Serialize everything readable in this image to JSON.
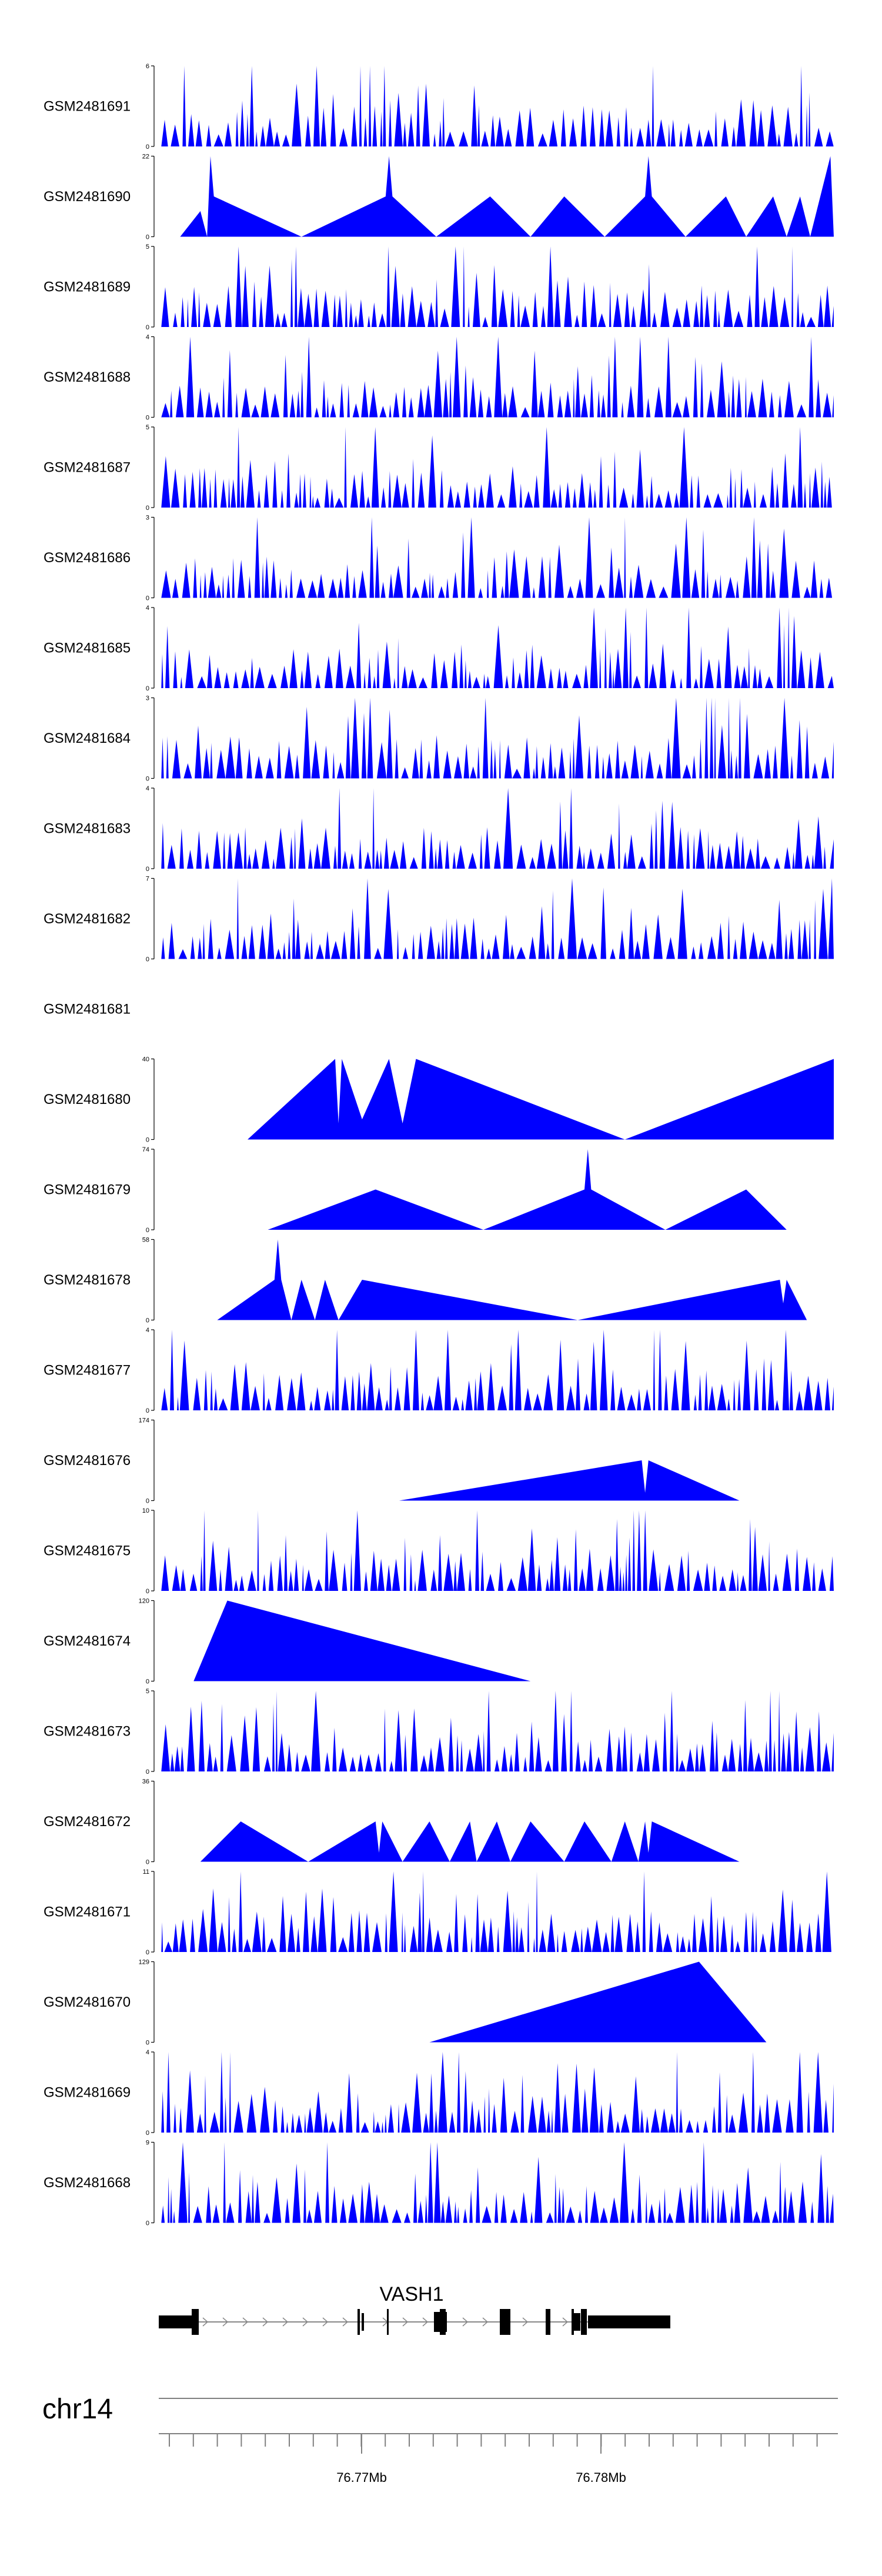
{
  "chart_data": {
    "type": "area",
    "region": "chr14",
    "gene": {
      "name": "VASH1"
    },
    "axis": {
      "ticks": [
        "76.77Mb",
        "76.78Mb"
      ]
    },
    "colors": {
      "signal": "#0000FF",
      "gene": "#000000",
      "axis": "#808080"
    },
    "tracks": [
      {
        "name": "GSM2481691",
        "ymax": "6",
        "empty": false,
        "peaks": []
      },
      {
        "name": "GSM2481690",
        "ymax": "22",
        "empty": false,
        "peaks": [
          [
            0.03,
            0
          ],
          [
            0.06,
            7
          ],
          [
            0.07,
            0
          ],
          [
            0.075,
            22
          ],
          [
            0.08,
            11
          ],
          [
            0.21,
            0
          ],
          [
            0.335,
            11
          ],
          [
            0.34,
            22
          ],
          [
            0.345,
            11
          ],
          [
            0.41,
            0
          ],
          [
            0.49,
            11
          ],
          [
            0.55,
            0
          ],
          [
            0.6,
            11
          ],
          [
            0.66,
            0
          ],
          [
            0.72,
            11
          ],
          [
            0.725,
            22
          ],
          [
            0.73,
            11
          ],
          [
            0.78,
            0
          ],
          [
            0.84,
            11
          ],
          [
            0.87,
            0
          ],
          [
            0.91,
            11
          ],
          [
            0.93,
            0
          ],
          [
            0.95,
            11
          ],
          [
            0.965,
            0
          ],
          [
            0.98,
            11
          ],
          [
            0.995,
            22
          ],
          [
            1.0,
            0
          ]
        ]
      },
      {
        "name": "GSM2481689",
        "ymax": "5",
        "empty": false,
        "peaks": []
      },
      {
        "name": "GSM2481688",
        "ymax": "4",
        "empty": false,
        "peaks": []
      },
      {
        "name": "GSM2481687",
        "ymax": "5",
        "empty": false,
        "peaks": []
      },
      {
        "name": "GSM2481686",
        "ymax": "3",
        "empty": false,
        "peaks": []
      },
      {
        "name": "GSM2481685",
        "ymax": "4",
        "empty": false,
        "peaks": []
      },
      {
        "name": "GSM2481684",
        "ymax": "3",
        "empty": false,
        "peaks": []
      },
      {
        "name": "GSM2481683",
        "ymax": "4",
        "empty": false,
        "peaks": []
      },
      {
        "name": "GSM2481682",
        "ymax": "7",
        "empty": false,
        "peaks": []
      },
      {
        "name": "GSM2481681",
        "ymax": "",
        "empty": true,
        "peaks": []
      },
      {
        "name": "GSM2481680",
        "ymax": "40",
        "empty": false,
        "peaks": [
          [
            0.13,
            0
          ],
          [
            0.26,
            40
          ],
          [
            0.265,
            8
          ],
          [
            0.27,
            40
          ],
          [
            0.3,
            10
          ],
          [
            0.34,
            40
          ],
          [
            0.36,
            8
          ],
          [
            0.38,
            40
          ],
          [
            0.69,
            0
          ],
          [
            1.0,
            40
          ]
        ]
      },
      {
        "name": "GSM2481679",
        "ymax": "74",
        "empty": false,
        "peaks": [
          [
            0.16,
            0
          ],
          [
            0.32,
            37
          ],
          [
            0.48,
            0
          ],
          [
            0.63,
            37
          ],
          [
            0.635,
            74
          ],
          [
            0.64,
            37
          ],
          [
            0.75,
            0
          ],
          [
            0.87,
            37
          ],
          [
            0.93,
            0
          ]
        ]
      },
      {
        "name": "GSM2481678",
        "ymax": "58",
        "empty": false,
        "peaks": [
          [
            0.085,
            0
          ],
          [
            0.17,
            29
          ],
          [
            0.175,
            58
          ],
          [
            0.18,
            29
          ],
          [
            0.195,
            0
          ],
          [
            0.21,
            29
          ],
          [
            0.23,
            0
          ],
          [
            0.245,
            29
          ],
          [
            0.265,
            0
          ],
          [
            0.3,
            29
          ],
          [
            0.62,
            0
          ],
          [
            0.92,
            29
          ],
          [
            0.925,
            12
          ],
          [
            0.93,
            29
          ],
          [
            0.96,
            0
          ]
        ]
      },
      {
        "name": "GSM2481677",
        "ymax": "4",
        "empty": false,
        "peaks": []
      },
      {
        "name": "GSM2481676",
        "ymax": "174",
        "empty": false,
        "peaks": [
          [
            0.355,
            0
          ],
          [
            0.715,
            87
          ],
          [
            0.72,
            17
          ],
          [
            0.725,
            87
          ],
          [
            0.86,
            0
          ]
        ]
      },
      {
        "name": "GSM2481675",
        "ymax": "10",
        "empty": false,
        "peaks": []
      },
      {
        "name": "GSM2481674",
        "ymax": "120",
        "empty": false,
        "peaks": [
          [
            0.05,
            0
          ],
          [
            0.1,
            120
          ],
          [
            0.55,
            0
          ]
        ]
      },
      {
        "name": "GSM2481673",
        "ymax": "5",
        "empty": false,
        "peaks": []
      },
      {
        "name": "GSM2481672",
        "ymax": "36",
        "empty": false,
        "peaks": [
          [
            0.06,
            0
          ],
          [
            0.12,
            18
          ],
          [
            0.22,
            0
          ],
          [
            0.32,
            18
          ],
          [
            0.325,
            4
          ],
          [
            0.33,
            18
          ],
          [
            0.36,
            0
          ],
          [
            0.4,
            18
          ],
          [
            0.43,
            0
          ],
          [
            0.46,
            18
          ],
          [
            0.47,
            0
          ],
          [
            0.5,
            18
          ],
          [
            0.52,
            0
          ],
          [
            0.55,
            18
          ],
          [
            0.6,
            0
          ],
          [
            0.63,
            18
          ],
          [
            0.67,
            0
          ],
          [
            0.69,
            18
          ],
          [
            0.71,
            0
          ],
          [
            0.72,
            18
          ],
          [
            0.725,
            4
          ],
          [
            0.73,
            18
          ],
          [
            0.86,
            0
          ]
        ]
      },
      {
        "name": "GSM2481671",
        "ymax": "11",
        "empty": false,
        "peaks": []
      },
      {
        "name": "GSM2481670",
        "ymax": "129",
        "empty": false,
        "peaks": [
          [
            0.4,
            0
          ],
          [
            0.8,
            129
          ],
          [
            0.9,
            0
          ]
        ]
      },
      {
        "name": "GSM2481669",
        "ymax": "4",
        "empty": false,
        "peaks": []
      },
      {
        "name": "GSM2481668",
        "ymax": "9",
        "empty": false,
        "peaks": []
      }
    ]
  }
}
